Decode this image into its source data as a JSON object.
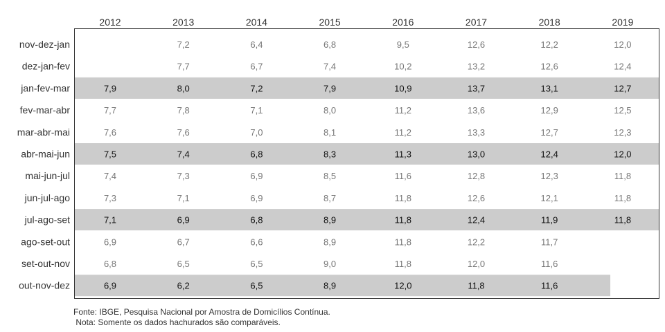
{
  "chart_data": {
    "type": "table",
    "columns": [
      "2012",
      "2013",
      "2014",
      "2015",
      "2016",
      "2017",
      "2018",
      "2019"
    ],
    "rows": [
      {
        "label": "nov-dez-jan",
        "highlight": false,
        "values": [
          "",
          "7,2",
          "6,4",
          "6,8",
          "9,5",
          "12,6",
          "12,2",
          "12,0"
        ]
      },
      {
        "label": "dez-jan-fev",
        "highlight": false,
        "values": [
          "",
          "7,7",
          "6,7",
          "7,4",
          "10,2",
          "13,2",
          "12,6",
          "12,4"
        ]
      },
      {
        "label": "jan-fev-mar",
        "highlight": true,
        "values": [
          "7,9",
          "8,0",
          "7,2",
          "7,9",
          "10,9",
          "13,7",
          "13,1",
          "12,7"
        ]
      },
      {
        "label": "fev-mar-abr",
        "highlight": false,
        "values": [
          "7,7",
          "7,8",
          "7,1",
          "8,0",
          "11,2",
          "13,6",
          "12,9",
          "12,5"
        ]
      },
      {
        "label": "mar-abr-mai",
        "highlight": false,
        "values": [
          "7,6",
          "7,6",
          "7,0",
          "8,1",
          "11,2",
          "13,3",
          "12,7",
          "12,3"
        ]
      },
      {
        "label": "abr-mai-jun",
        "highlight": true,
        "values": [
          "7,5",
          "7,4",
          "6,8",
          "8,3",
          "11,3",
          "13,0",
          "12,4",
          "12,0"
        ]
      },
      {
        "label": "mai-jun-jul",
        "highlight": false,
        "values": [
          "7,4",
          "7,3",
          "6,9",
          "8,5",
          "11,6",
          "12,8",
          "12,3",
          "11,8"
        ]
      },
      {
        "label": "jun-jul-ago",
        "highlight": false,
        "values": [
          "7,3",
          "7,1",
          "6,9",
          "8,7",
          "11,8",
          "12,6",
          "12,1",
          "11,8"
        ]
      },
      {
        "label": "jul-ago-set",
        "highlight": true,
        "values": [
          "7,1",
          "6,9",
          "6,8",
          "8,9",
          "11,8",
          "12,4",
          "11,9",
          "11,8"
        ]
      },
      {
        "label": "ago-set-out",
        "highlight": false,
        "values": [
          "6,9",
          "6,7",
          "6,6",
          "8,9",
          "11,8",
          "12,2",
          "11,7",
          ""
        ]
      },
      {
        "label": "set-out-nov",
        "highlight": false,
        "values": [
          "6,8",
          "6,5",
          "6,5",
          "9,0",
          "11,8",
          "12,0",
          "11,6",
          ""
        ]
      },
      {
        "label": "out-nov-dez",
        "highlight": true,
        "values": [
          "6,9",
          "6,2",
          "6,5",
          "8,9",
          "12,0",
          "11,8",
          "11,6",
          ""
        ]
      }
    ],
    "highlight_color": "#cccccc",
    "text_color_highlight": "#111111",
    "text_color_normal": "#777777",
    "grid": false
  },
  "notes": {
    "source": "Fonte: IBGE, Pesquisa Nacional por Amostra de Domicílios Contínua.",
    "note": " Nota: Somente os dados hachurados são comparáveis."
  }
}
